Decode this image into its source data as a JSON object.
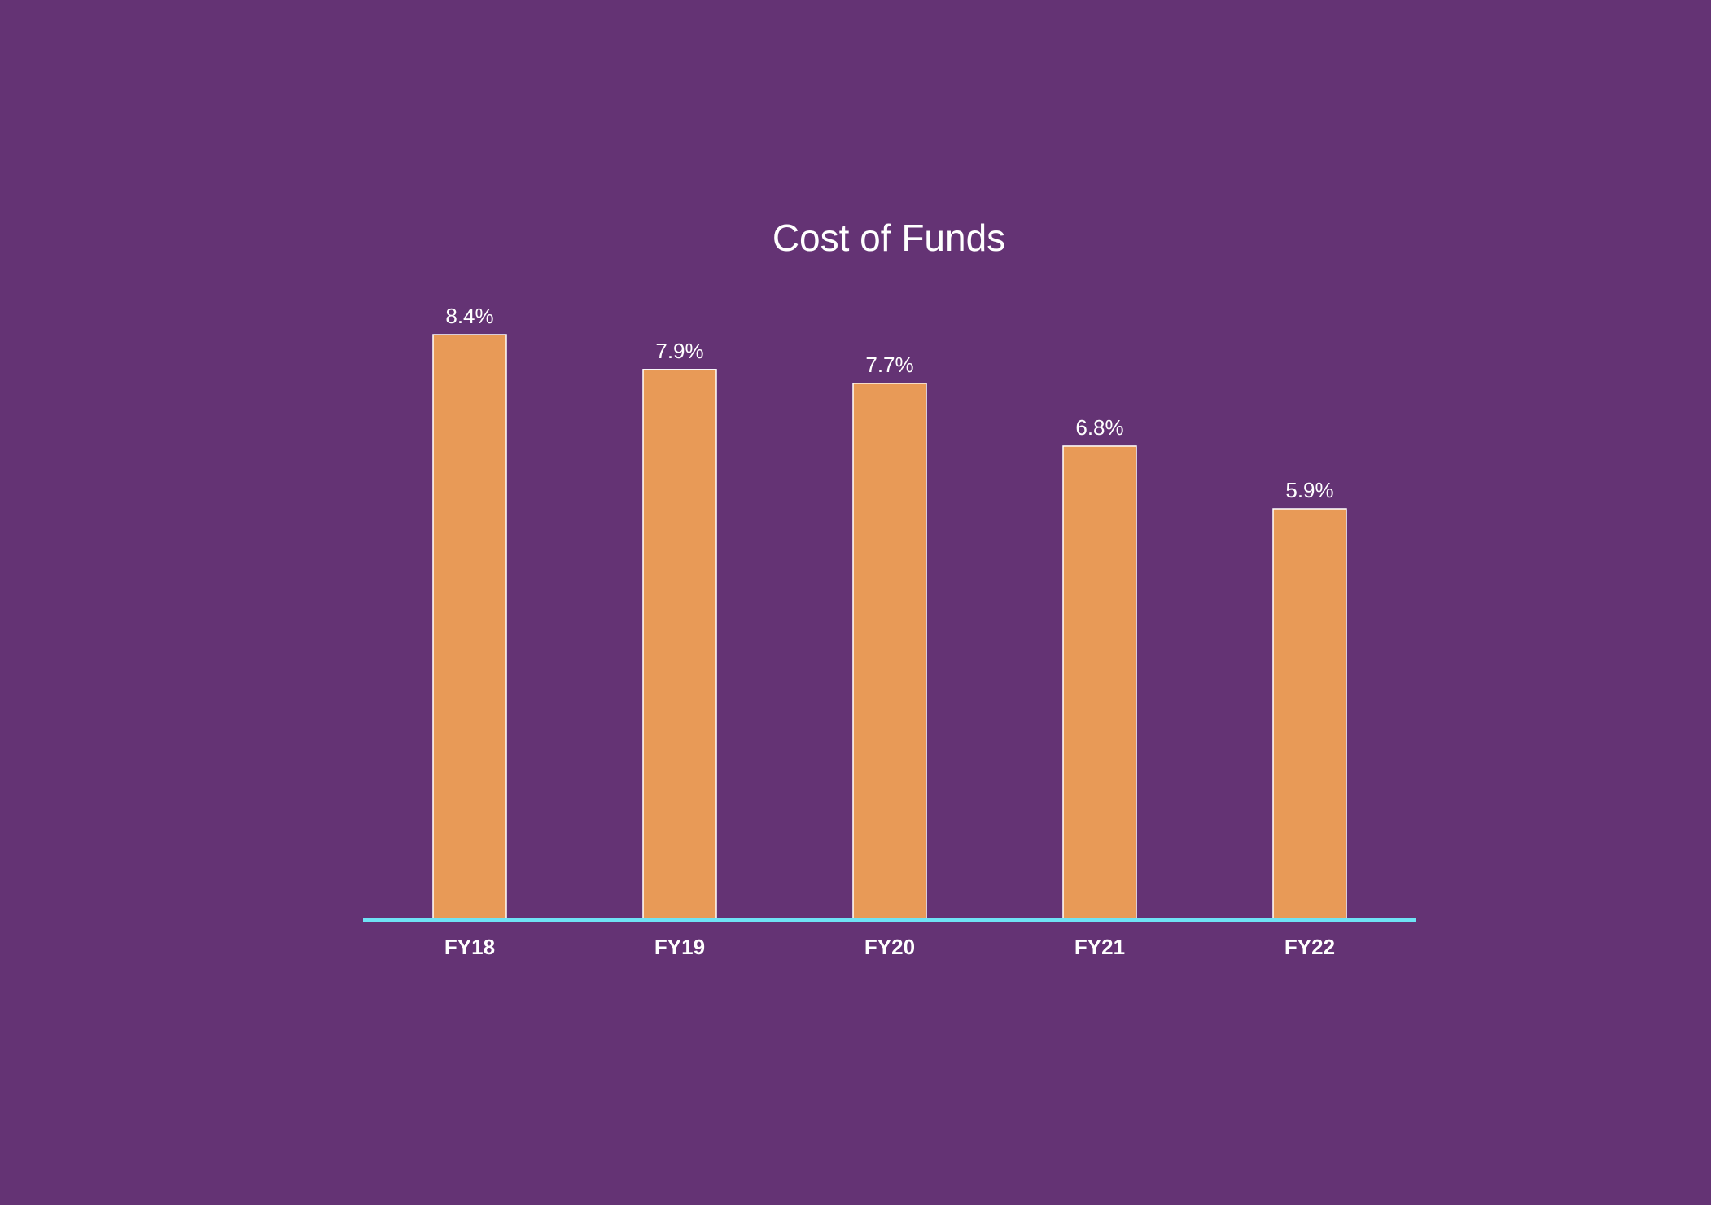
{
  "chart_data": {
    "type": "bar",
    "title": "Cost of Funds",
    "categories": [
      "FY18",
      "FY19",
      "FY20",
      "FY21",
      "FY22"
    ],
    "values": [
      8.4,
      7.9,
      7.7,
      6.8,
      5.9
    ],
    "data_labels": [
      "8.4%",
      "7.9%",
      "7.7%",
      "6.8%",
      "5.9%"
    ],
    "xlabel": "",
    "ylabel": "",
    "ylim": [
      0,
      8.4
    ],
    "grid": false,
    "legend": "none",
    "y_axis_visible": false
  },
  "colors": {
    "background": "#643374",
    "bar_fill": "#E89A57",
    "bar_stroke": "#FFFFFF",
    "axis_line": "#6FE3F5",
    "text": "#FFFFFF"
  }
}
